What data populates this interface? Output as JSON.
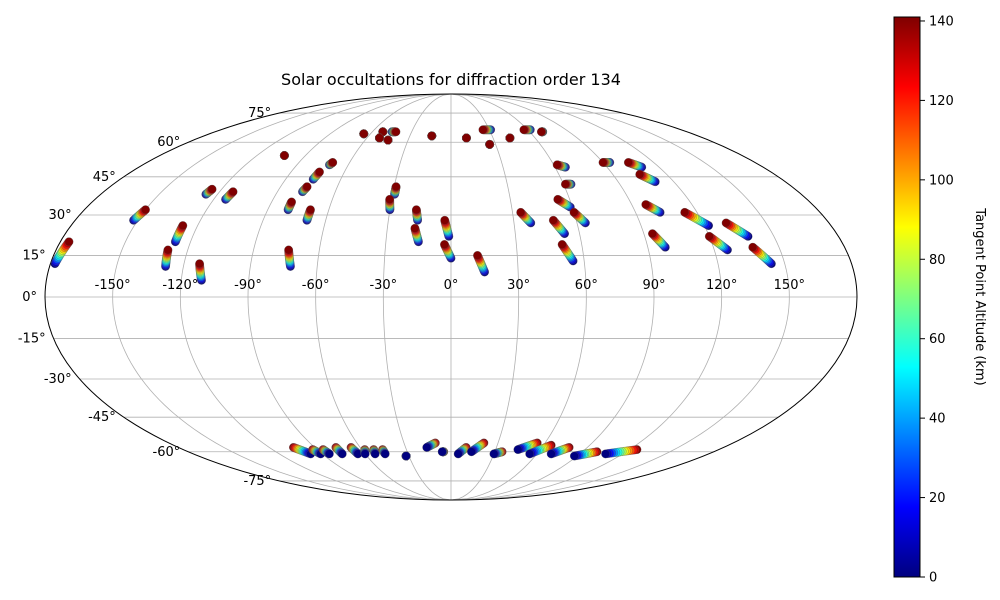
{
  "chart_data": {
    "type": "scatter",
    "projection": "mollweide",
    "title": "Solar occultations for diffraction order 134",
    "lon_ticks": [
      -150,
      -120,
      -90,
      -60,
      -30,
      0,
      30,
      60,
      90,
      120,
      150
    ],
    "lon_tick_labels": [
      "-150°",
      "-120°",
      "-90°",
      "-60°",
      "-30°",
      "0°",
      "30°",
      "60°",
      "90°",
      "120°",
      "150°"
    ],
    "lat_ticks": [
      75,
      60,
      45,
      30,
      15,
      0,
      -15,
      -30,
      -45,
      -60,
      -75
    ],
    "lat_tick_labels": [
      "75°",
      "60°",
      "45°",
      "30°",
      "15°",
      "0°",
      "-15°",
      "-30°",
      "-45°",
      "-60°",
      "-75°"
    ],
    "grid": true,
    "colorbar": {
      "label": "Tangent Point Altitude (km)",
      "colormap": "jet",
      "range": [
        0,
        141
      ],
      "ticks": [
        0,
        20,
        40,
        60,
        80,
        100,
        120,
        140
      ]
    },
    "north_tracks": [
      {
        "lon_top": -176,
        "lat_top": 20,
        "lon_bottom": -178,
        "lat_bottom": 12
      },
      {
        "lon_top": -150,
        "lat_top": 32,
        "lon_bottom": -152,
        "lat_bottom": 28
      },
      {
        "lon_top": -125,
        "lat_top": 40,
        "lon_bottom": -126,
        "lat_bottom": 38
      },
      {
        "lon_top": -113,
        "lat_top": 39,
        "lon_bottom": -114,
        "lat_bottom": 36
      },
      {
        "lon_top": -127,
        "lat_top": 26,
        "lon_bottom": -127,
        "lat_bottom": 20
      },
      {
        "lon_top": -129,
        "lat_top": 17,
        "lon_bottom": -128,
        "lat_bottom": 11
      },
      {
        "lon_top": -113,
        "lat_top": 12,
        "lon_bottom": -111,
        "lat_bottom": 6
      },
      {
        "lon_top": -103,
        "lat_top": 54,
        "lon_bottom": -103,
        "lat_bottom": 54
      },
      {
        "lon_top": -80,
        "lat_top": 35,
        "lon_bottom": -80,
        "lat_bottom": 32
      },
      {
        "lon_top": -76,
        "lat_top": 41,
        "lon_bottom": -77,
        "lat_bottom": 39
      },
      {
        "lon_top": -74,
        "lat_top": 47,
        "lon_bottom": -75,
        "lat_bottom": 44
      },
      {
        "lon_top": -70,
        "lat_top": 51,
        "lon_bottom": -71,
        "lat_bottom": 50
      },
      {
        "lon_top": -69,
        "lat_top": 32,
        "lon_bottom": -69,
        "lat_bottom": 28
      },
      {
        "lon_top": -74,
        "lat_top": 17,
        "lon_bottom": -72,
        "lat_bottom": 11
      },
      {
        "lon_top": -65,
        "lat_top": 64,
        "lon_bottom": -65,
        "lat_bottom": 64
      },
      {
        "lon_top": -52,
        "lat_top": 65,
        "lon_bottom": -52,
        "lat_bottom": 65
      },
      {
        "lon_top": -51,
        "lat_top": 62,
        "lon_bottom": -51,
        "lat_bottom": 62
      },
      {
        "lon_top": -44,
        "lat_top": 61,
        "lon_bottom": -44,
        "lat_bottom": 61
      },
      {
        "lon_top": -42,
        "lat_top": 65,
        "lon_bottom": -45,
        "lat_bottom": 65
      },
      {
        "lon_top": -29,
        "lat_top": 41,
        "lon_bottom": -29,
        "lat_bottom": 38
      },
      {
        "lon_top": -31,
        "lat_top": 36,
        "lon_bottom": -30,
        "lat_bottom": 32
      },
      {
        "lon_top": -17,
        "lat_top": 32,
        "lon_bottom": -16,
        "lat_bottom": 28
      },
      {
        "lon_top": -17,
        "lat_top": 25,
        "lon_bottom": -15,
        "lat_bottom": 20
      },
      {
        "lon_top": -14,
        "lat_top": 63,
        "lon_bottom": -14,
        "lat_bottom": 63
      },
      {
        "lon_top": -3,
        "lat_top": 28,
        "lon_bottom": -1,
        "lat_bottom": 22
      },
      {
        "lon_top": -3,
        "lat_top": 19,
        "lon_bottom": 0,
        "lat_bottom": 14
      },
      {
        "lon_top": 11,
        "lat_top": 62,
        "lon_bottom": 11,
        "lat_bottom": 62
      },
      {
        "lon_top": 12,
        "lat_top": 15,
        "lon_bottom": 15,
        "lat_bottom": 9
      },
      {
        "lon_top": 25,
        "lat_top": 66,
        "lon_bottom": 31,
        "lat_bottom": 66
      },
      {
        "lon_top": 26,
        "lat_top": 59,
        "lon_bottom": 26,
        "lat_bottom": 59
      },
      {
        "lon_top": 34,
        "lat_top": 31,
        "lon_bottom": 38,
        "lat_bottom": 27
      },
      {
        "lon_top": 42,
        "lat_top": 62,
        "lon_bottom": 42,
        "lat_bottom": 62
      },
      {
        "lon_top": 49,
        "lat_top": 28,
        "lon_bottom": 53,
        "lat_bottom": 23
      },
      {
        "lon_top": 51,
        "lat_top": 19,
        "lon_bottom": 55,
        "lat_bottom": 13
      },
      {
        "lon_top": 54,
        "lat_top": 36,
        "lon_bottom": 59,
        "lat_bottom": 33
      },
      {
        "lon_top": 57,
        "lat_top": 66,
        "lon_bottom": 62,
        "lat_bottom": 66
      },
      {
        "lon_top": 61,
        "lat_top": 42,
        "lon_bottom": 64,
        "lat_bottom": 42
      },
      {
        "lon_top": 62,
        "lat_top": 50,
        "lon_bottom": 66,
        "lat_bottom": 49
      },
      {
        "lon_top": 60,
        "lat_top": 31,
        "lon_bottom": 64,
        "lat_bottom": 27
      },
      {
        "lon_top": 69,
        "lat_top": 65,
        "lon_bottom": 70,
        "lat_bottom": 65
      },
      {
        "lon_top": 90,
        "lat_top": 51,
        "lon_bottom": 94,
        "lat_bottom": 51
      },
      {
        "lon_top": 94,
        "lat_top": 23,
        "lon_bottom": 98,
        "lat_bottom": 18
      },
      {
        "lon_top": 97,
        "lat_top": 34,
        "lon_bottom": 102,
        "lat_bottom": 31
      },
      {
        "lon_top": 105,
        "lat_top": 51,
        "lon_bottom": 110,
        "lat_bottom": 49
      },
      {
        "lon_top": 105,
        "lat_top": 46,
        "lon_bottom": 110,
        "lat_bottom": 43
      },
      {
        "lon_top": 114,
        "lat_top": 31,
        "lon_bottom": 122,
        "lat_bottom": 26
      },
      {
        "lon_top": 120,
        "lat_top": 22,
        "lon_bottom": 126,
        "lat_bottom": 17
      },
      {
        "lon_top": 131,
        "lat_top": 27,
        "lon_bottom": 138,
        "lat_bottom": 22
      },
      {
        "lon_top": 138,
        "lat_top": 18,
        "lon_bottom": 144,
        "lat_bottom": 12
      }
    ],
    "south_tracks": [
      {
        "lon_high": -104,
        "lat_high": -58,
        "lon_low": -98,
        "lat_low": -61
      },
      {
        "lon_high": -93,
        "lat_high": -59,
        "lon_low": -91,
        "lat_low": -61
      },
      {
        "lon_high": -86,
        "lat_high": -59,
        "lon_low": -85,
        "lat_low": -61
      },
      {
        "lon_high": -76,
        "lat_high": -58,
        "lon_low": -76,
        "lat_low": -61
      },
      {
        "lon_high": -66,
        "lat_high": -58,
        "lon_low": -65,
        "lat_low": -61
      },
      {
        "lon_high": -58,
        "lat_high": -59,
        "lon_low": -60,
        "lat_low": -61
      },
      {
        "lon_high": -52,
        "lat_high": -59,
        "lon_low": -53,
        "lat_low": -61
      },
      {
        "lon_high": -46,
        "lat_high": -59,
        "lon_low": -46,
        "lat_low": -61
      },
      {
        "lon_high": -32,
        "lat_high": -62,
        "lon_low": -32,
        "lat_low": -62
      },
      {
        "lon_high": -10,
        "lat_high": -56,
        "lon_low": -16,
        "lat_low": -58
      },
      {
        "lon_high": -5,
        "lat_high": -60,
        "lon_low": -6,
        "lat_low": -60
      },
      {
        "lon_high": 10,
        "lat_high": -58,
        "lon_low": 5,
        "lat_low": -61
      },
      {
        "lon_high": 21,
        "lat_high": -56,
        "lon_low": 14,
        "lat_low": -60
      },
      {
        "lon_high": 35,
        "lat_high": -60,
        "lon_low": 30,
        "lat_low": -61
      },
      {
        "lon_high": 55,
        "lat_high": -56,
        "lon_low": 45,
        "lat_low": -59
      },
      {
        "lon_high": 65,
        "lat_high": -57,
        "lon_low": 55,
        "lat_low": -61
      },
      {
        "lon_high": 78,
        "lat_high": -58,
        "lon_low": 70,
        "lat_low": -61
      },
      {
        "lon_high": 100,
        "lat_high": -60,
        "lon_low": 88,
        "lat_low": -62
      },
      {
        "lon_high": 125,
        "lat_high": -59,
        "lon_low": 108,
        "lat_low": -61
      }
    ]
  }
}
